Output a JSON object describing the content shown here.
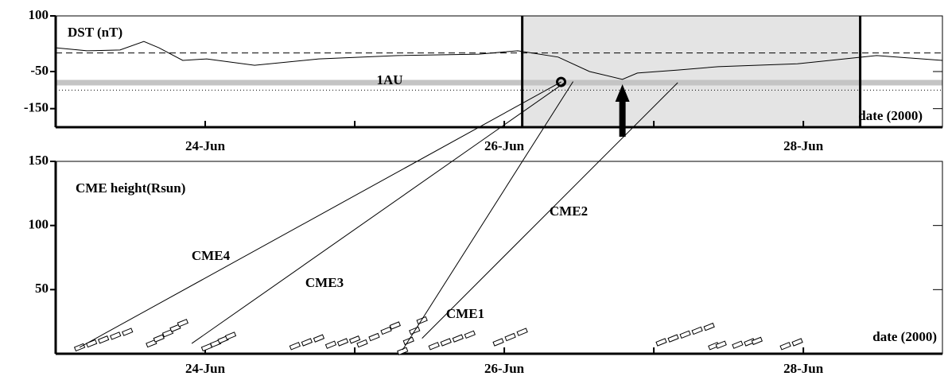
{
  "chart_data": [
    {
      "type": "line",
      "title": "DST (nT)",
      "xlabel": "date (2000)",
      "xlim": [
        23,
        28.93
      ],
      "ylim": [
        -200,
        100
      ],
      "yticks": [
        100,
        -50,
        -150
      ],
      "xticks": [
        {
          "value": 24,
          "label": "24-Jun"
        },
        {
          "value": 26,
          "label": "26-Jun"
        },
        {
          "value": 28,
          "label": "28-Jun"
        }
      ],
      "xminor_ticks": [
        25,
        27
      ],
      "series": [
        {
          "color": "#000000",
          "x": [
            23.0,
            23.21,
            23.43,
            23.59,
            23.69,
            23.85,
            24.01,
            24.33,
            24.76,
            25.29,
            25.83,
            26.09,
            26.36,
            26.57,
            26.79,
            26.89,
            27.16,
            27.43,
            27.96,
            28.49,
            28.93
          ],
          "values": [
            14,
            6,
            8,
            31,
            14,
            -20,
            -16,
            -33,
            -16,
            -7,
            -3,
            6,
            -11,
            -50,
            -71,
            -54,
            -46,
            -37,
            -29,
            -7,
            -20
          ]
        }
      ],
      "hlines": [
        {
          "value": 0,
          "style": "dashed"
        },
        {
          "value": -80,
          "style": "gray",
          "label": "1AU"
        },
        {
          "value": -100,
          "style": "dotted"
        }
      ],
      "shaded_region": [
        26.12,
        28.38
      ],
      "marker": {
        "x": 26.38,
        "y": -78
      },
      "arrow_x": 26.79
    },
    {
      "type": "scatter",
      "title": "CME height(Rsun)",
      "xlabel": "date (2000)",
      "xlim": [
        23,
        28.93
      ],
      "ylim": [
        0,
        150
      ],
      "yticks": [
        50,
        100,
        150
      ],
      "xticks": [
        {
          "value": 24,
          "label": "24-Jun"
        },
        {
          "value": 26,
          "label": "26-Jun"
        },
        {
          "value": 28,
          "label": "28-Jun"
        }
      ],
      "xminor_ticks": [
        25,
        27
      ],
      "series": [
        {
          "color": "#000000",
          "x": [
            23.16,
            23.24,
            23.32,
            23.4,
            23.48,
            23.64,
            23.69,
            23.75,
            23.8,
            23.85,
            24.01,
            24.07,
            24.12,
            24.17,
            24.6,
            24.68,
            24.76,
            24.84,
            24.92,
            25.0,
            25.05,
            25.13,
            25.21,
            25.27,
            25.32,
            25.36,
            25.4,
            25.45,
            25.53,
            25.61,
            25.69,
            25.77,
            25.96,
            26.04,
            26.12,
            27.05,
            27.13,
            27.21,
            27.29,
            27.37,
            27.4,
            27.45,
            27.56,
            27.64,
            27.69,
            27.88,
            27.96
          ],
          "values": [
            5,
            8,
            11,
            14,
            17,
            8,
            12,
            16,
            20,
            24,
            5,
            8,
            11,
            14,
            6,
            9,
            12,
            7,
            9,
            11,
            8,
            13,
            18,
            22,
            2,
            10,
            18,
            26,
            6,
            9,
            12,
            15,
            9,
            13,
            17,
            9,
            12,
            15,
            18,
            21,
            6,
            7,
            7,
            9,
            10,
            6,
            9
          ]
        }
      ],
      "cme_tracks": [
        {
          "name": "CME4",
          "start": [
            23.16,
            5
          ],
          "end": [
            26.38,
            -78
          ]
        },
        {
          "name": "CME3",
          "start": [
            23.91,
            8
          ],
          "end": [
            26.41,
            -78
          ]
        },
        {
          "name": "CME1",
          "start": [
            25.32,
            3
          ],
          "end": [
            26.46,
            -77
          ]
        },
        {
          "name": "CME2",
          "start": [
            25.45,
            12
          ],
          "end": [
            27.16,
            -80
          ]
        }
      ]
    }
  ]
}
